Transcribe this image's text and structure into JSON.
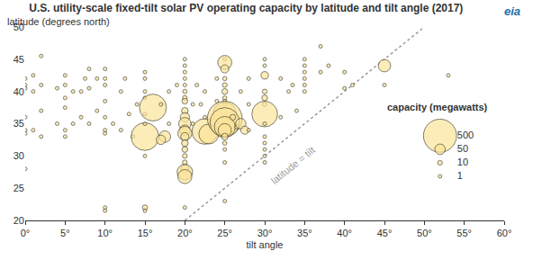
{
  "chart_data": {
    "type": "scatter",
    "title": "U.S. utility-scale fixed-tilt solar PV operating capacity by latitude and tilt angle (2017)",
    "xlabel": "tilt angle",
    "ylabel": "latitude (degrees north)",
    "logo": "eia",
    "color": "#fbe49a",
    "grid": false,
    "marker": "circle",
    "xlim": [
      0,
      60
    ],
    "ylim": [
      20,
      50
    ],
    "xticks": [
      {
        "value": 0,
        "label": "0°"
      },
      {
        "value": 5,
        "label": "5°"
      },
      {
        "value": 10,
        "label": "10°"
      },
      {
        "value": 15,
        "label": "15°"
      },
      {
        "value": 20,
        "label": "20°"
      },
      {
        "value": 25,
        "label": "25°"
      },
      {
        "value": 30,
        "label": "30°"
      },
      {
        "value": 35,
        "label": "35°"
      },
      {
        "value": 40,
        "label": "40°"
      },
      {
        "value": 45,
        "label": "45°"
      },
      {
        "value": 50,
        "label": "50°"
      },
      {
        "value": 55,
        "label": "55°"
      },
      {
        "value": 60,
        "label": "60°"
      }
    ],
    "yticks": [
      20,
      25,
      30,
      35,
      40,
      45,
      50
    ],
    "x": [
      0,
      0,
      0,
      0,
      0,
      0,
      0,
      1,
      1,
      1,
      2,
      2,
      2,
      2,
      4,
      4,
      5,
      5,
      5,
      5,
      5,
      5,
      6,
      6,
      7,
      7.5,
      7,
      8,
      8,
      8,
      9,
      9,
      10,
      10,
      10,
      10,
      10,
      10,
      10,
      10,
      10,
      11,
      12,
      12,
      12.5,
      13,
      13.5,
      14,
      15,
      15,
      15,
      15,
      15,
      15,
      15,
      15,
      15,
      15,
      16,
      17.5,
      17,
      17,
      18,
      18,
      19,
      20,
      20,
      20,
      20,
      20,
      20,
      20,
      20,
      20,
      20,
      20,
      20,
      20,
      20,
      20,
      20,
      20,
      20,
      20,
      20,
      20,
      20,
      21,
      21,
      21.5,
      22.5,
      23,
      22.5,
      22.5,
      22,
      24,
      24,
      25,
      25,
      25,
      25,
      25,
      25,
      25,
      25,
      25,
      25,
      25,
      25,
      25,
      25,
      25,
      25,
      25,
      25,
      25,
      26,
      26.5,
      27,
      27.5,
      27,
      28,
      28,
      28,
      30,
      30,
      30,
      30,
      30,
      30,
      30,
      30,
      30,
      30,
      30,
      30,
      30,
      32,
      32,
      33,
      33.5,
      34,
      35,
      35,
      35,
      35,
      35,
      35,
      37,
      37,
      38,
      40,
      40,
      41,
      45,
      45,
      53
    ],
    "y": [
      42,
      40.5,
      36,
      34,
      33.5,
      28,
      41,
      42.5,
      40,
      34,
      45.5,
      41,
      33,
      37,
      40.5,
      35,
      39,
      37.5,
      34,
      33,
      41,
      42.5,
      35,
      40,
      40,
      42,
      36,
      40.5,
      43.5,
      35,
      42,
      37,
      43.5,
      42,
      41,
      38.5,
      36,
      34,
      33.5,
      22,
      21.5,
      35,
      34,
      40,
      42,
      36.5,
      33,
      38,
      33,
      35,
      36.5,
      39,
      40,
      42,
      43,
      22,
      21.5,
      30,
      37.5,
      33,
      32.5,
      38,
      40,
      35,
      41,
      45,
      44,
      43,
      42,
      41,
      40,
      39,
      38.5,
      37,
      36,
      35,
      34,
      33.5,
      33,
      32,
      31,
      30,
      29,
      28,
      27.5,
      26.8,
      22,
      35,
      38,
      41,
      33.8,
      33.4,
      36,
      40,
      38,
      38.5,
      42,
      45,
      44.5,
      43.5,
      42,
      41,
      40,
      39,
      38.5,
      38,
      36.5,
      35.8,
      35.2,
      34.5,
      34,
      33,
      32,
      31,
      29,
      23,
      36,
      34.5,
      35,
      34,
      40,
      38,
      42,
      34,
      45,
      44,
      42.5,
      40,
      39,
      38,
      36.5,
      35,
      33,
      32,
      31,
      30,
      29,
      42,
      36,
      40,
      41,
      37,
      45,
      44,
      43,
      42,
      41,
      40,
      43,
      47,
      44,
      43,
      40.5,
      41,
      44,
      41,
      42.5
    ],
    "capacity": [
      2,
      1,
      1,
      2,
      1,
      1,
      1,
      1,
      1,
      1,
      1,
      1,
      1,
      1,
      1,
      1,
      3,
      6,
      2,
      1,
      1,
      1,
      1,
      1,
      1,
      1,
      1,
      2,
      1,
      1,
      1,
      1,
      3,
      2,
      2,
      1,
      1,
      2,
      1,
      5,
      1,
      3,
      1,
      2,
      1,
      1,
      1,
      2,
      350,
      2,
      4,
      3,
      2,
      2,
      3,
      12,
      2,
      2,
      330,
      60,
      40,
      3,
      2,
      2,
      1,
      3,
      4,
      5,
      5,
      4,
      8,
      10,
      15,
      20,
      40,
      70,
      50,
      90,
      30,
      20,
      15,
      10,
      10,
      30,
      110,
      90,
      3,
      5,
      3,
      2,
      300,
      180,
      5,
      3,
      3,
      3,
      2,
      3,
      90,
      30,
      8,
      10,
      15,
      8,
      3,
      6,
      250,
      550,
      400,
      200,
      80,
      20,
      8,
      5,
      3,
      2,
      15,
      8,
      50,
      30,
      5,
      3,
      2,
      4,
      2,
      5,
      25,
      10,
      15,
      8,
      300,
      5,
      3,
      3,
      2,
      3,
      2,
      2,
      2,
      3,
      1,
      2,
      3,
      2,
      2,
      3,
      2,
      1,
      1,
      1,
      1,
      1,
      1,
      1,
      70,
      1,
      2
    ],
    "reference_line": {
      "label": "latitude = tilt",
      "x": [
        20,
        50
      ],
      "y": [
        20,
        50
      ]
    },
    "size_legend": {
      "title": "capacity (megawatts)",
      "values": [
        500,
        50,
        10,
        1
      ]
    }
  }
}
